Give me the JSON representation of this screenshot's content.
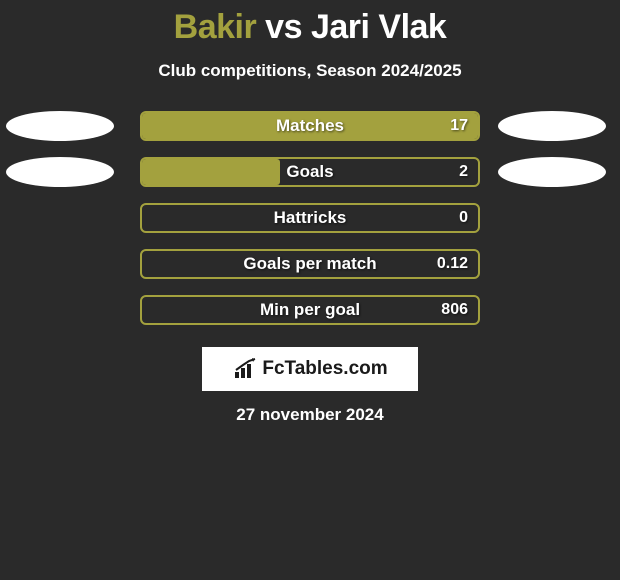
{
  "title": {
    "player1": "Bakir",
    "vs": "vs",
    "player2": "Jari Vlak"
  },
  "subtitle": "Club competitions, Season 2024/2025",
  "colors": {
    "accent": "#a3a13e",
    "border": "#a3a13e",
    "ellipse": "#ffffff",
    "text": "#ffffff",
    "bg": "#2a2a2a"
  },
  "stats": [
    {
      "label": "Matches",
      "value": "17",
      "fill_pct": 100,
      "left_ellipse": true,
      "right_ellipse": true
    },
    {
      "label": "Goals",
      "value": "2",
      "fill_pct": 41,
      "left_ellipse": true,
      "right_ellipse": true
    },
    {
      "label": "Hattricks",
      "value": "0",
      "fill_pct": 0,
      "left_ellipse": false,
      "right_ellipse": false
    },
    {
      "label": "Goals per match",
      "value": "0.12",
      "fill_pct": 0,
      "left_ellipse": false,
      "right_ellipse": false
    },
    {
      "label": "Min per goal",
      "value": "806",
      "fill_pct": 0,
      "left_ellipse": false,
      "right_ellipse": false
    }
  ],
  "brand": "FcTables.com",
  "date": "27 november 2024"
}
